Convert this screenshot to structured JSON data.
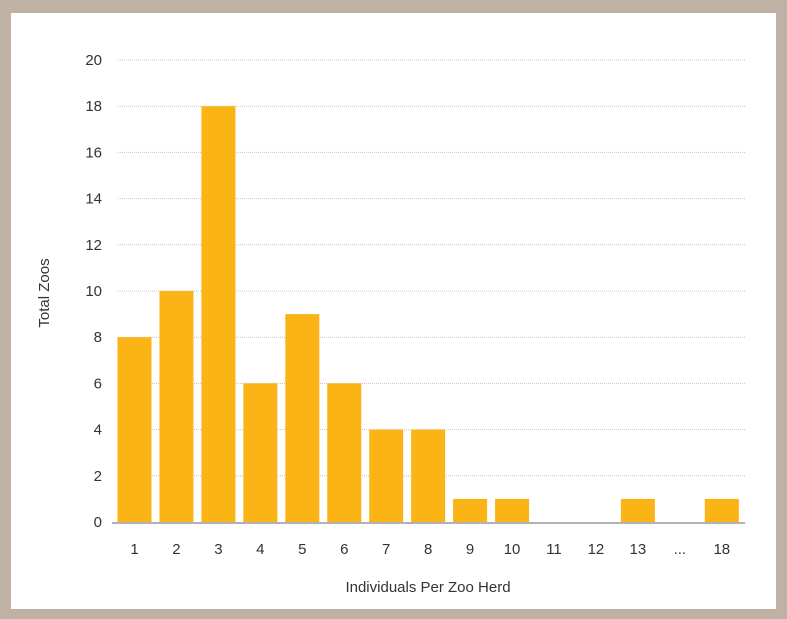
{
  "chart_data": {
    "type": "bar",
    "categories": [
      "1",
      "2",
      "3",
      "4",
      "5",
      "6",
      "7",
      "8",
      "9",
      "10",
      "11",
      "12",
      "13",
      "...",
      "18"
    ],
    "values": [
      8,
      10,
      18,
      6,
      9,
      6,
      4,
      4,
      1,
      1,
      0,
      0,
      1,
      0,
      1
    ],
    "xlabel": "Individuals Per Zoo Herd",
    "ylabel": "Total Zoos",
    "ylim": [
      0,
      20
    ],
    "yticks": [
      "0",
      "2",
      "4",
      "6",
      "8",
      "10",
      "12",
      "14",
      "16",
      "18",
      "20"
    ],
    "grid": true,
    "bar_color": "#fbb416",
    "frame_color": "#bfb1a3"
  }
}
